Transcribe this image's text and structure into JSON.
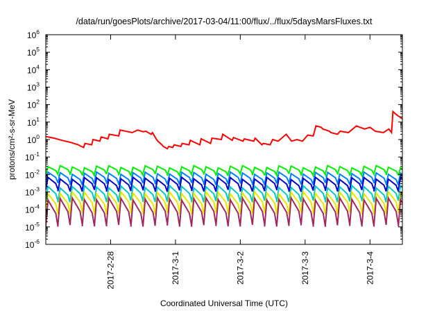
{
  "chart_data": {
    "type": "line",
    "title": "/data/run/goesPlots/archive/2017-03-04/11:00/flux/../flux/5daysMarsFluxes.txt",
    "xlabel": "Coordinated Universal Time (UTC)",
    "ylabel": "protons/cm²-s-sr-MeV",
    "y_scale": "log",
    "ylim": [
      1e-06,
      1000000.0
    ],
    "xlim": [
      "2017-02-27 00:00",
      "2017-03-04 12:00"
    ],
    "grid": false,
    "legend": "none",
    "y_ticks": [
      {
        "base": "10",
        "exp": "-6"
      },
      {
        "base": "10",
        "exp": "-5"
      },
      {
        "base": "10",
        "exp": "-4"
      },
      {
        "base": "10",
        "exp": "-3"
      },
      {
        "base": "10",
        "exp": "-2"
      },
      {
        "base": "10",
        "exp": "-1"
      },
      {
        "base": "10",
        "exp": "0"
      },
      {
        "base": "10",
        "exp": "1"
      },
      {
        "base": "10",
        "exp": "2"
      },
      {
        "base": "10",
        "exp": "3"
      },
      {
        "base": "10",
        "exp": "4"
      },
      {
        "base": "10",
        "exp": "5"
      },
      {
        "base": "10",
        "exp": "6"
      }
    ],
    "x_ticks": [
      "2017-2-28",
      "2017-3-1",
      "2017-3-2",
      "2017-3-3",
      "2017-3-4"
    ],
    "x_tick_dates": [
      "2017-02-28 00:00",
      "2017-03-01 00:00",
      "2017-03-02 00:00",
      "2017-03-03 00:00",
      "2017-03-04 00:00"
    ],
    "series": [
      {
        "color": "#ff0000",
        "x": [
          "2017-02-27 00:00",
          "2017-02-27 03:00",
          "2017-02-27 06:00",
          "2017-02-27 09:00",
          "2017-02-27 12:00",
          "2017-02-27 14:00",
          "2017-02-27 14:30",
          "2017-02-27 17:00",
          "2017-02-27 17:30",
          "2017-02-27 20:00",
          "2017-02-27 20:30",
          "2017-02-27 23:00",
          "2017-02-27 23:30",
          "2017-02-28 03:00",
          "2017-02-28 03:30",
          "2017-02-28 08:00",
          "2017-02-28 10:00",
          "2017-02-28 12:00",
          "2017-02-28 13:00",
          "2017-02-28 15:00",
          "2017-02-28 15:30",
          "2017-02-28 17:00",
          "2017-02-28 17:30",
          "2017-02-28 19:00",
          "2017-02-28 19:30",
          "2017-02-28 21:00",
          "2017-02-28 21:30",
          "2017-02-28 23:00",
          "2017-02-28 23:30",
          "2017-03-01 02:00",
          "2017-03-01 02:30",
          "2017-03-01 05:00",
          "2017-03-01 05:30",
          "2017-03-01 09:00",
          "2017-03-01 09:30",
          "2017-03-01 13:00",
          "2017-03-01 13:30",
          "2017-03-01 17:00",
          "2017-03-01 17:30",
          "2017-03-01 21:00",
          "2017-03-01 21:30",
          "2017-03-02 01:00",
          "2017-03-02 01:30",
          "2017-03-02 05:00",
          "2017-03-02 05:30",
          "2017-03-02 08:00",
          "2017-03-02 08:30",
          "2017-03-02 11:00",
          "2017-03-02 12:00",
          "2017-03-02 14:00",
          "2017-03-02 17:00",
          "2017-03-02 19:00",
          "2017-03-02 21:00",
          "2017-03-02 23:00",
          "2017-03-03 01:00",
          "2017-03-03 03:00",
          "2017-03-03 04:00",
          "2017-03-03 06:00",
          "2017-03-03 06:30",
          "2017-03-03 09:00",
          "2017-03-03 09:30",
          "2017-03-03 12:00",
          "2017-03-03 13:00",
          "2017-03-03 16:00",
          "2017-03-03 19:00",
          "2017-03-03 22:00",
          "2017-03-04 00:00",
          "2017-03-04 02:00",
          "2017-03-04 05:00",
          "2017-03-04 07:00",
          "2017-03-04 08:00",
          "2017-03-04 08:30",
          "2017-03-04 10:00",
          "2017-03-04 11:00",
          "2017-03-04 12:00"
        ],
        "y": [
          1.5,
          1.2,
          0.9,
          0.7,
          0.5,
          0.35,
          0.6,
          0.5,
          1.0,
          0.8,
          1.4,
          1.1,
          2.0,
          1.6,
          3.5,
          2.5,
          3.5,
          2.8,
          3.0,
          2.0,
          2.5,
          1.0,
          0.8,
          0.5,
          0.4,
          0.3,
          0.4,
          0.35,
          0.5,
          0.4,
          0.6,
          0.5,
          0.9,
          0.5,
          1.1,
          0.6,
          1.2,
          1.0,
          2.0,
          0.9,
          1.3,
          0.8,
          1.1,
          0.8,
          1.2,
          0.5,
          0.6,
          0.5,
          1.0,
          0.8,
          2.0,
          0.8,
          1.0,
          0.8,
          1.8,
          1.6,
          6.0,
          5.0,
          4.0,
          3.0,
          2.5,
          2.0,
          3.0,
          2.5,
          6.0,
          4.0,
          5.0,
          3.0,
          2.5,
          4.0,
          2.5,
          40.0,
          25.0,
          20.0,
          15.0
        ]
      }
    ],
    "band_series": [
      {
        "color": "#00ee00",
        "period_hours": 4.5,
        "peak": 0.028,
        "trough": 0.01
      },
      {
        "color": "#0080ff",
        "period_hours": 4.5,
        "peak": 0.012,
        "trough": 0.003
      },
      {
        "color": "#0000c8",
        "period_hours": 4.5,
        "peak": 0.006,
        "trough": 0.0012
      },
      {
        "color": "#00c8c8",
        "period_hours": 4.5,
        "peak": 0.002,
        "trough": 0.0003
      },
      {
        "color": "#e6e600",
        "period_hours": 4.5,
        "peak": 0.0009,
        "trough": 6e-05
      },
      {
        "color": "#a02860",
        "period_hours": 4.5,
        "peak": 0.0004,
        "trough": 1.2e-05
      }
    ]
  }
}
